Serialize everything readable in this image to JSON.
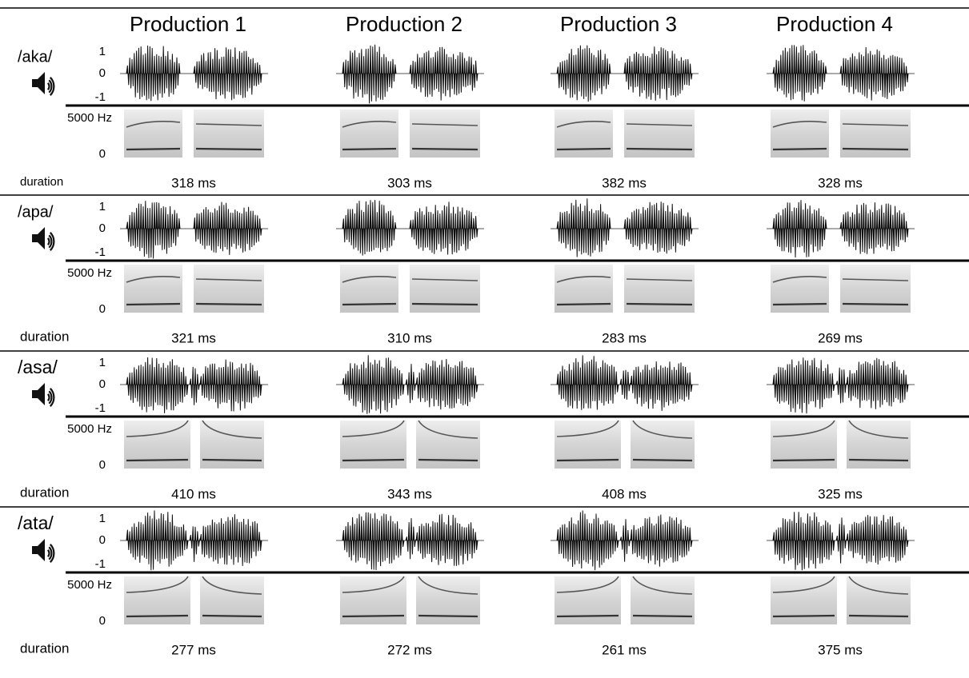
{
  "header": {
    "columns": [
      "Production 1",
      "Production 2",
      "Production 3",
      "Production 4"
    ]
  },
  "rows": [
    {
      "label": "/aka/",
      "waveform_ticks": [
        "1",
        "0",
        "-1"
      ],
      "spectrogram_ticks": [
        "5000 Hz",
        "0"
      ],
      "duration_label": "duration",
      "durations": [
        "318 ms",
        "303 ms",
        "382 ms",
        "328 ms"
      ]
    },
    {
      "label": "/apa/",
      "waveform_ticks": [
        "1",
        "0",
        "-1"
      ],
      "spectrogram_ticks": [
        "5000 Hz",
        "0"
      ],
      "duration_label": "duration",
      "durations": [
        "321 ms",
        "310 ms",
        "283 ms",
        "269 ms"
      ]
    },
    {
      "label": "/asa/",
      "waveform_ticks": [
        "1",
        "0",
        "-1"
      ],
      "spectrogram_ticks": [
        "5000 Hz",
        "0"
      ],
      "duration_label": "duration",
      "durations": [
        "410 ms",
        "343 ms",
        "408 ms",
        "325 ms"
      ]
    },
    {
      "label": "/ata/",
      "waveform_ticks": [
        "1",
        "0",
        "-1"
      ],
      "spectrogram_ticks": [
        "5000 Hz",
        "0"
      ],
      "duration_label": "duration",
      "durations": [
        "277 ms",
        "272 ms",
        "261 ms",
        "375 ms"
      ]
    }
  ]
}
